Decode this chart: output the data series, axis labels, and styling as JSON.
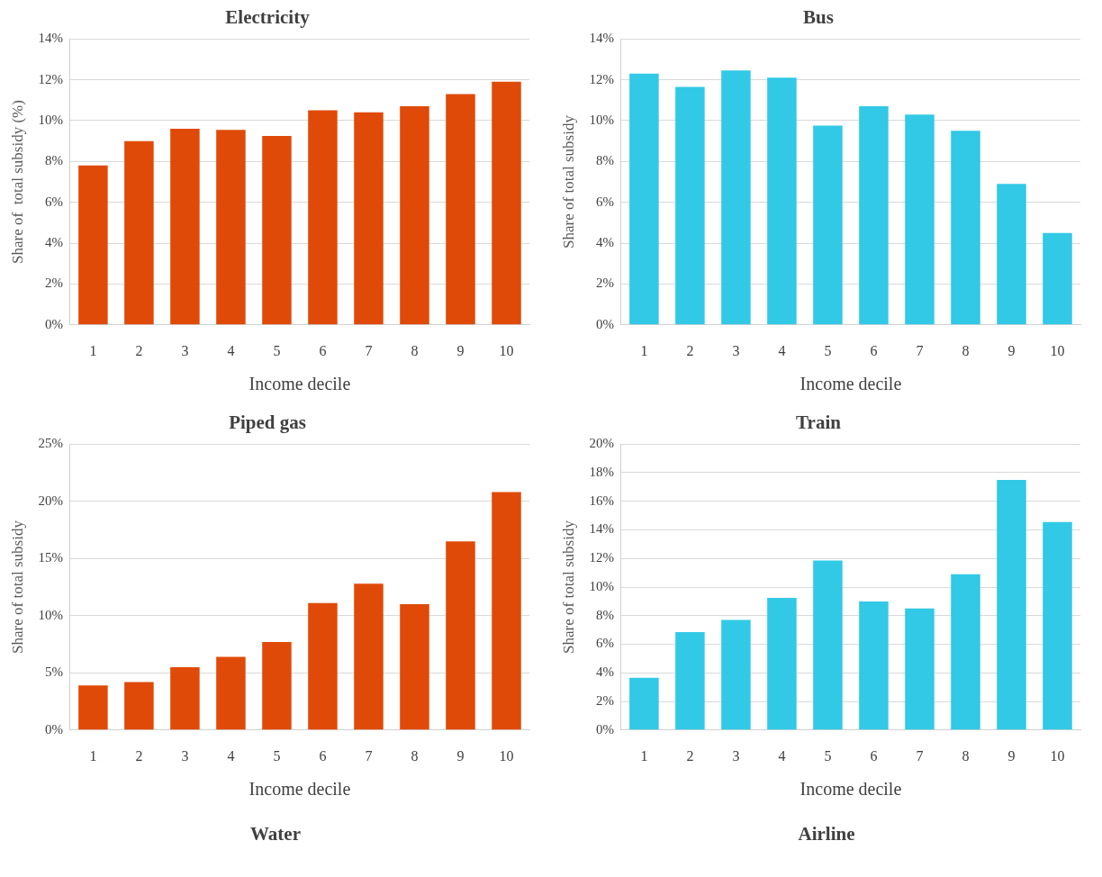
{
  "chart_data": [
    {
      "type": "bar",
      "title": "Electricity",
      "xlabel": "Income decile",
      "ylabel": "Share of  total subsidy (%)",
      "categories": [
        "1",
        "2",
        "3",
        "4",
        "5",
        "6",
        "7",
        "8",
        "9",
        "10"
      ],
      "values": [
        7.8,
        9.0,
        9.6,
        9.55,
        9.25,
        10.5,
        10.4,
        10.7,
        11.3,
        11.9
      ],
      "color": "#e04a08",
      "ylim": [
        0,
        14
      ],
      "yticks": [
        {
          "value": 0,
          "label": "0%"
        },
        {
          "value": 2,
          "label": "2%"
        },
        {
          "value": 4,
          "label": "4%"
        },
        {
          "value": 6,
          "label": "6%"
        },
        {
          "value": 8,
          "label": "8%"
        },
        {
          "value": 10,
          "label": "10%"
        },
        {
          "value": 12,
          "label": "12%"
        },
        {
          "value": 14,
          "label": "14%"
        }
      ],
      "grid": "y",
      "legend": false
    },
    {
      "type": "bar",
      "title": "Bus",
      "xlabel": "Income decile",
      "ylabel": "Share of total subsidy",
      "categories": [
        "1",
        "2",
        "3",
        "4",
        "5",
        "6",
        "7",
        "8",
        "9",
        "10"
      ],
      "values": [
        12.3,
        11.65,
        12.45,
        12.1,
        9.75,
        10.7,
        10.3,
        9.5,
        6.9,
        4.5
      ],
      "color": "#31c9e6",
      "ylim": [
        0,
        14
      ],
      "yticks": [
        {
          "value": 0,
          "label": "0%"
        },
        {
          "value": 2,
          "label": "2%"
        },
        {
          "value": 4,
          "label": "4%"
        },
        {
          "value": 6,
          "label": "6%"
        },
        {
          "value": 8,
          "label": "8%"
        },
        {
          "value": 10,
          "label": "10%"
        },
        {
          "value": 12,
          "label": "12%"
        },
        {
          "value": 14,
          "label": "14%"
        }
      ],
      "grid": "y",
      "legend": false
    },
    {
      "type": "bar",
      "title": "Piped gas",
      "xlabel": "Income decile",
      "ylabel": "Share of total subsidy",
      "categories": [
        "1",
        "2",
        "3",
        "4",
        "5",
        "6",
        "7",
        "8",
        "9",
        "10"
      ],
      "values": [
        3.9,
        4.2,
        5.5,
        6.4,
        7.7,
        11.1,
        12.8,
        11.0,
        16.5,
        20.8
      ],
      "color": "#e04a08",
      "ylim": [
        0,
        25
      ],
      "yticks": [
        {
          "value": 0,
          "label": "0%"
        },
        {
          "value": 5,
          "label": "5%"
        },
        {
          "value": 10,
          "label": "10%"
        },
        {
          "value": 15,
          "label": "15%"
        },
        {
          "value": 20,
          "label": "20%"
        },
        {
          "value": 25,
          "label": "25%"
        }
      ],
      "grid": "y",
      "legend": false
    },
    {
      "type": "bar",
      "title": "Train",
      "xlabel": "Income decile",
      "ylabel": "Share of total subsidy",
      "categories": [
        "1",
        "2",
        "3",
        "4",
        "5",
        "6",
        "7",
        "8",
        "9",
        "10"
      ],
      "values": [
        3.65,
        6.85,
        7.7,
        9.25,
        11.85,
        9.0,
        8.5,
        10.9,
        17.5,
        14.55
      ],
      "color": "#31c9e6",
      "ylim": [
        0,
        20
      ],
      "yticks": [
        {
          "value": 0,
          "label": "0%"
        },
        {
          "value": 2,
          "label": "2%"
        },
        {
          "value": 4,
          "label": "4%"
        },
        {
          "value": 6,
          "label": "6%"
        },
        {
          "value": 8,
          "label": "8%"
        },
        {
          "value": 10,
          "label": "10%"
        },
        {
          "value": 12,
          "label": "12%"
        },
        {
          "value": 14,
          "label": "14%"
        },
        {
          "value": 16,
          "label": "16%"
        },
        {
          "value": 18,
          "label": "18%"
        },
        {
          "value": 20,
          "label": "20%"
        }
      ],
      "grid": "y",
      "legend": false
    },
    {
      "type": "other",
      "title": "Water"
    },
    {
      "type": "other",
      "title": "Airline"
    }
  ]
}
